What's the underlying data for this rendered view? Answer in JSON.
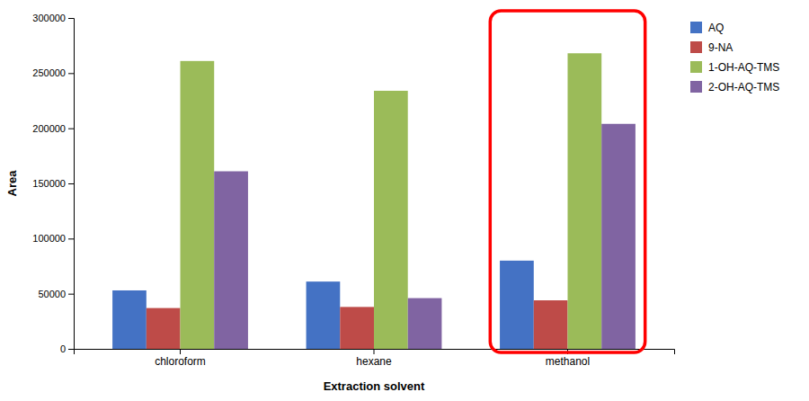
{
  "chart_data": {
    "type": "bar",
    "xlabel": "Extraction solvent",
    "ylabel": "Area",
    "categories": [
      "chloroform",
      "hexane",
      "methanol"
    ],
    "series": [
      {
        "name": "AQ",
        "color": "#4472C4",
        "values": [
          53000,
          61000,
          80000
        ]
      },
      {
        "name": "9-NA",
        "color": "#BE4B48",
        "values": [
          37000,
          38000,
          44000
        ]
      },
      {
        "name": "1-OH-AQ-TMS",
        "color": "#9BBB59",
        "values": [
          261000,
          234000,
          268000
        ]
      },
      {
        "name": "2-OH-AQ-TMS",
        "color": "#8064A2",
        "values": [
          161000,
          46000,
          204000
        ]
      }
    ],
    "ylim": [
      0,
      300000
    ],
    "yticks": [
      0,
      50000,
      100000,
      150000,
      200000,
      250000,
      300000
    ],
    "grid": false,
    "legend": "right"
  }
}
